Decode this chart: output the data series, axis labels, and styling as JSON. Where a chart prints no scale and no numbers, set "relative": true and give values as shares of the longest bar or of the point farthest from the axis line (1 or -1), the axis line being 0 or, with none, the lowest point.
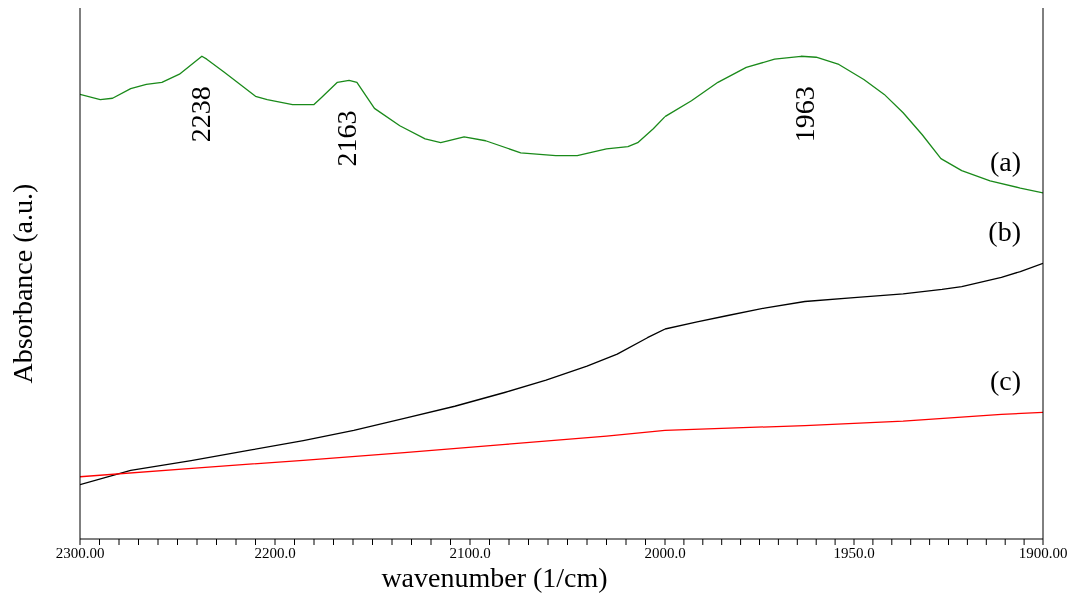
{
  "chart_data": [
    {
      "type": "line",
      "relative": true,
      "xlabel": "wavenumber (1/cm)",
      "ylabel": "Absorbance (a.u.)",
      "xlim": [
        2300,
        2000
      ],
      "xticks": [
        {
          "value": 2300,
          "label": "2300.00"
        },
        {
          "value": 2290,
          "label": null
        },
        {
          "value": 2280,
          "label": null
        },
        {
          "value": 2270,
          "label": null
        },
        {
          "value": 2260,
          "label": null
        },
        {
          "value": 2250,
          "label": null
        },
        {
          "value": 2240,
          "label": null
        },
        {
          "value": 2230,
          "label": null
        },
        {
          "value": 2220,
          "label": null
        },
        {
          "value": 2210,
          "label": null
        },
        {
          "value": 2200,
          "label": "2200.0"
        },
        {
          "value": 2190,
          "label": null
        },
        {
          "value": 2180,
          "label": null
        },
        {
          "value": 2170,
          "label": null
        },
        {
          "value": 2160,
          "label": null
        },
        {
          "value": 2150,
          "label": null
        },
        {
          "value": 2140,
          "label": null
        },
        {
          "value": 2130,
          "label": null
        },
        {
          "value": 2120,
          "label": null
        },
        {
          "value": 2110,
          "label": null
        },
        {
          "value": 2100,
          "label": "2100.0"
        },
        {
          "value": 2090,
          "label": null
        },
        {
          "value": 2080,
          "label": null
        },
        {
          "value": 2070,
          "label": null
        },
        {
          "value": 2060,
          "label": null
        },
        {
          "value": 2050,
          "label": null
        },
        {
          "value": 2040,
          "label": null
        },
        {
          "value": 2030,
          "label": null
        },
        {
          "value": 2020,
          "label": null
        },
        {
          "value": 2010,
          "label": null
        },
        {
          "value": 2000,
          "label": "2000.0"
        }
      ],
      "marker": "none",
      "line_style": "solid",
      "series": [
        {
          "color": "#1a8a1a",
          "x": [
            2300,
            2289.6,
            2283.3,
            2274,
            2266,
            2258,
            2249,
            2237.5,
            2235,
            2226,
            2210,
            2204,
            2191,
            2180,
            2176,
            2168,
            2162,
            2158,
            2149,
            2136,
            2123,
            2115,
            2103,
            2092,
            2074,
            2056,
            2045,
            2030,
            2019,
            2014,
            2006,
            2000
          ],
          "values": [
            0.921,
            0.91,
            0.913,
            0.933,
            0.942,
            0.946,
            0.963,
            1,
            0.994,
            0.967,
            0.917,
            0.91,
            0.9,
            0.9,
            0.915,
            0.946,
            0.95,
            0.946,
            0.892,
            0.856,
            0.829,
            0.821,
            0.833,
            0.825,
            0.8,
            0.794,
            0.794,
            0.808,
            0.813,
            0.821,
            0.85,
            0.875
          ]
        },
        {
          "color": "#000000",
          "x": [
            2300,
            2274,
            2243,
            2211.5,
            2185.5,
            2159.6,
            2133.7,
            2107.8,
            2081.8,
            2061,
            2040,
            2024.5,
            2009,
            2000
          ],
          "values": [
            0.1125,
            0.142,
            0.1625,
            0.185,
            0.204,
            0.225,
            0.25,
            0.275,
            0.304,
            0.329,
            0.358,
            0.383,
            0.417,
            0.435
          ]
        },
        {
          "color": "#ff0000",
          "x": [
            2300,
            2237.5,
            2185.5,
            2133.7,
            2081.8,
            2030,
            2000
          ],
          "values": [
            0.129,
            0.148,
            0.163,
            0.179,
            0.196,
            0.213,
            0.225
          ]
        }
      ],
      "annotations": [
        {
          "text": "2238",
          "x": 2238,
          "y": 1
        },
        {
          "text": "2163",
          "x": 2163,
          "y": 0.95
        }
      ]
    },
    {
      "type": "line",
      "relative": true,
      "xlim": [
        2000,
        1900
      ],
      "xticks": [
        {
          "value": 1995,
          "label": null
        },
        {
          "value": 1990,
          "label": null
        },
        {
          "value": 1985,
          "label": null
        },
        {
          "value": 1980,
          "label": null
        },
        {
          "value": 1975,
          "label": null
        },
        {
          "value": 1970,
          "label": null
        },
        {
          "value": 1965,
          "label": null
        },
        {
          "value": 1960,
          "label": null
        },
        {
          "value": 1955,
          "label": null
        },
        {
          "value": 1950,
          "label": "1950.0"
        },
        {
          "value": 1945,
          "label": null
        },
        {
          "value": 1940,
          "label": null
        },
        {
          "value": 1935,
          "label": null
        },
        {
          "value": 1930,
          "label": null
        },
        {
          "value": 1925,
          "label": null
        },
        {
          "value": 1920,
          "label": null
        },
        {
          "value": 1915,
          "label": null
        },
        {
          "value": 1910,
          "label": null
        },
        {
          "value": 1905,
          "label": null
        },
        {
          "value": 1900,
          "label": "1900.00"
        }
      ],
      "marker": "none",
      "line_style": "solid",
      "series": [
        {
          "name": "(a)",
          "color": "#1a8a1a",
          "x": [
            2000,
            1993,
            1986,
            1978.5,
            1971,
            1964,
            1960,
            1954,
            1947.4,
            1942,
            1937,
            1932,
            1927,
            1921.5,
            1914,
            1906,
            1900
          ],
          "values": [
            0.875,
            0.908,
            0.946,
            0.977,
            0.994,
            1,
            0.998,
            0.983,
            0.952,
            0.921,
            0.883,
            0.838,
            0.788,
            0.763,
            0.742,
            0.727,
            0.717
          ]
        },
        {
          "name": "(b)",
          "color": "#000000",
          "x": [
            2000,
            1991.5,
            1983.7,
            1973.3,
            1963,
            1950,
            1937,
            1926.7,
            1921.5,
            1911,
            1906,
            1900
          ],
          "values": [
            0.435,
            0.45,
            0.4625,
            0.479,
            0.492,
            0.5,
            0.508,
            0.517,
            0.523,
            0.542,
            0.554,
            0.571
          ]
        },
        {
          "name": "(c)",
          "color": "#ff0000",
          "x": [
            2000,
            1963,
            1937,
            1911,
            1900
          ],
          "values": [
            0.225,
            0.235,
            0.244,
            0.258,
            0.2625
          ]
        }
      ],
      "annotations": [
        {
          "text": "1963",
          "x": 1963,
          "y": 1
        }
      ]
    }
  ]
}
